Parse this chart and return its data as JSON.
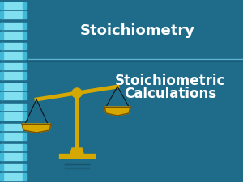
{
  "bg_color": "#1e6b8a",
  "title_text": "Stoichiometry",
  "subtitle_line1": "Stoichiometric",
  "subtitle_line2": "Calculations",
  "title_color": "#ffffff",
  "subtitle_color": "#ffffff",
  "divider_color": "#1a5a75",
  "divider_color2": "#5ab4d0",
  "chain_color_light": "#80e0f0",
  "chain_color_mid": "#40b8d8",
  "chain_color_dark": "#1e6b8a",
  "title_fontsize": 13,
  "subtitle_fontsize": 12,
  "scale_gold": "#d4a800",
  "scale_dark": "#7a5000",
  "scale_black": "#111111"
}
